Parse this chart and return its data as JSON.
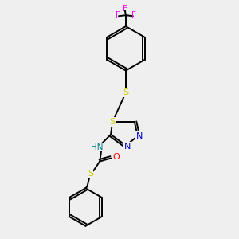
{
  "bg_color": "#efefef",
  "bond_color": "#000000",
  "bond_width": 1.4,
  "fig_size": [
    3.0,
    3.0
  ],
  "dpi": 100,
  "atom_colors": {
    "S": "#cccc00",
    "N": "#0000cc",
    "O": "#ff0000",
    "F": "#ff00ff",
    "H": "#008080",
    "C": "#000000"
  }
}
